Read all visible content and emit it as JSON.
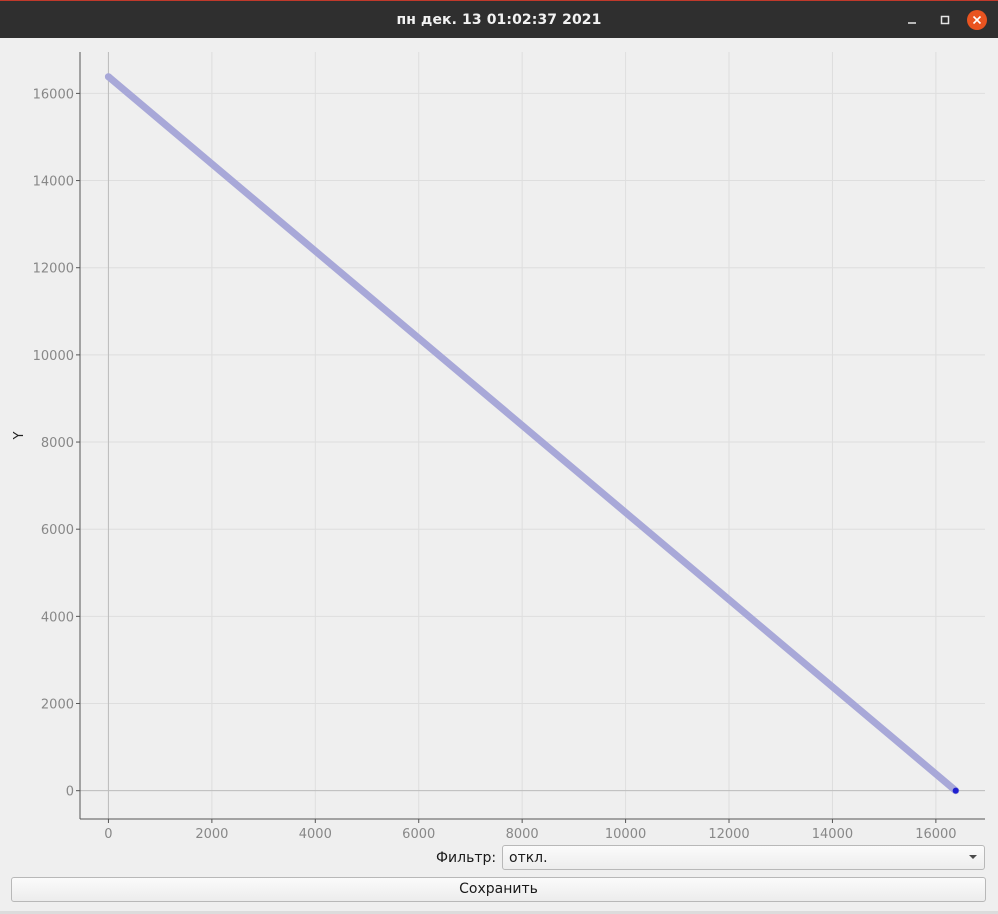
{
  "window": {
    "title": "пн дек. 13 01:02:37 2021"
  },
  "title_buttons": {
    "minimize_icon": "minimize-icon",
    "maximize_icon": "maximize-icon",
    "close_icon": "close-icon",
    "close_color": "#e95420"
  },
  "chart_data": {
    "type": "scatter",
    "title": "",
    "xlabel": "",
    "ylabel": "Y",
    "xlim": [
      -550,
      16950
    ],
    "ylim": [
      -650,
      16950
    ],
    "x_ticks": [
      0,
      2000,
      4000,
      6000,
      8000,
      10000,
      12000,
      14000,
      16000
    ],
    "y_ticks": [
      0,
      2000,
      4000,
      6000,
      8000,
      10000,
      12000,
      14000,
      16000
    ],
    "grid": true,
    "series": [
      {
        "color": "#a8a8d8",
        "points": [
          [
            0,
            16383
          ],
          [
            16383,
            0
          ]
        ]
      }
    ],
    "highlight_point": {
      "x": 16383,
      "y": 0,
      "color": "#2020d0"
    }
  },
  "filter": {
    "label": "Фильтр:",
    "value": "откл."
  },
  "save": {
    "label": "Сохранить"
  }
}
